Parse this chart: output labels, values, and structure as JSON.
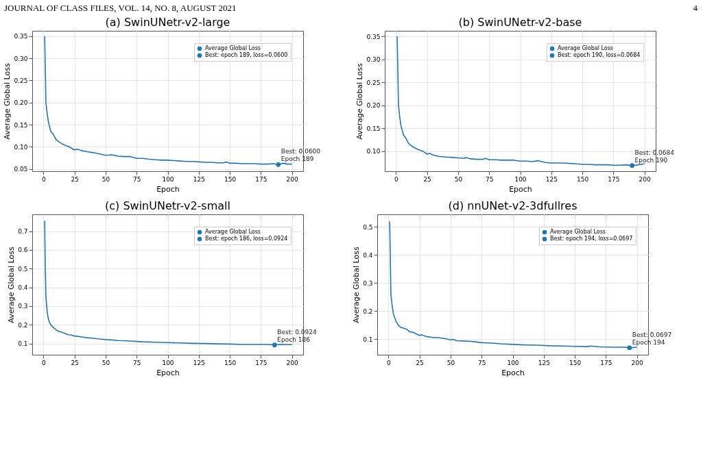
{
  "chart_data": [
    {
      "type": "line",
      "title": "(a) SwinUNetr-v2-large",
      "xlabel": "Epoch",
      "ylabel": "Average Global Loss",
      "xlim": [
        -9,
        209
      ],
      "ylim": [
        0.045,
        0.362
      ],
      "xticks": [
        0,
        25,
        50,
        75,
        100,
        125,
        150,
        175,
        200
      ],
      "yticks": [
        0.05,
        {
          "value": 0.1,
          "label": "0.10"
        },
        0.15,
        {
          "value": 0.2,
          "label": "0.20"
        },
        0.25,
        {
          "value": 0.3,
          "label": "0.30"
        },
        0.35
      ],
      "grid": true,
      "legend": "top right",
      "series": [
        {
          "name": "Average Global Loss",
          "color": "#1f77b4",
          "marker": "none",
          "x": [
            1,
            2,
            3,
            4,
            5,
            6,
            8,
            10,
            12,
            15,
            18,
            20,
            22,
            25,
            27,
            30,
            35,
            40,
            45,
            50,
            55,
            60,
            65,
            70,
            75,
            80,
            85,
            90,
            95,
            100,
            105,
            110,
            115,
            120,
            125,
            130,
            135,
            140,
            145,
            147,
            150,
            155,
            160,
            165,
            170,
            175,
            180,
            185,
            189,
            193,
            196,
            200
          ],
          "values": [
            0.35,
            0.2,
            0.175,
            0.157,
            0.145,
            0.135,
            0.128,
            0.117,
            0.112,
            0.107,
            0.103,
            0.101,
            0.098,
            0.093,
            0.095,
            0.092,
            0.089,
            0.087,
            0.084,
            0.081,
            0.082,
            0.079,
            0.078,
            0.078,
            0.074,
            0.074,
            0.072,
            0.071,
            0.07,
            0.07,
            0.069,
            0.068,
            0.067,
            0.067,
            0.066,
            0.065,
            0.065,
            0.064,
            0.064,
            0.066,
            0.063,
            0.063,
            0.062,
            0.062,
            0.062,
            0.061,
            0.061,
            0.062,
            0.06,
            0.063,
            0.061,
            0.061
          ]
        },
        {
          "name": "Best: epoch 189, loss=0.0600",
          "type": "scatter",
          "marker": "circle",
          "color": "#1f77b4",
          "x": [
            189
          ],
          "values": [
            0.06
          ]
        }
      ],
      "annotations": [
        "JOURNAL OF CLASS FILES, VOL. 14, NO. 8, AUGUST 2021",
        "4",
        {
          "text": "Best: 0.0600\nEpoch 189",
          "x": 189,
          "y": 0.06
        }
      ]
    },
    {
      "type": "line",
      "title": "(b) SwinUNetr-v2-base",
      "xlabel": "Epoch",
      "ylabel": "Average Global Loss",
      "xlim": [
        -9,
        209
      ],
      "ylim": [
        0.056,
        0.362
      ],
      "xticks": [
        0,
        25,
        50,
        75,
        100,
        125,
        150,
        175,
        200
      ],
      "yticks": [
        {
          "value": 0.1,
          "label": "0.10"
        },
        0.15,
        {
          "value": 0.2,
          "label": "0.20"
        },
        0.25,
        {
          "value": 0.3,
          "label": "0.30"
        },
        0.35
      ],
      "grid": true,
      "legend": "top right",
      "series": [
        {
          "name": "Average Global Loss",
          "color": "#1f77b4",
          "marker": "none",
          "x": [
            1,
            2,
            3,
            4,
            5,
            6,
            8,
            10,
            12,
            15,
            18,
            20,
            22,
            25,
            27,
            30,
            35,
            40,
            45,
            50,
            55,
            56,
            60,
            65,
            70,
            72,
            75,
            80,
            85,
            90,
            95,
            100,
            105,
            110,
            114,
            120,
            125,
            130,
            135,
            140,
            145,
            150,
            155,
            160,
            165,
            170,
            175,
            180,
            185,
            190,
            195,
            200
          ],
          "values": [
            0.35,
            0.2,
            0.175,
            0.155,
            0.145,
            0.135,
            0.128,
            0.117,
            0.112,
            0.107,
            0.103,
            0.101,
            0.099,
            0.093,
            0.095,
            0.091,
            0.088,
            0.087,
            0.086,
            0.085,
            0.084,
            0.086,
            0.083,
            0.082,
            0.082,
            0.084,
            0.081,
            0.081,
            0.08,
            0.08,
            0.08,
            0.078,
            0.078,
            0.077,
            0.079,
            0.075,
            0.074,
            0.074,
            0.074,
            0.073,
            0.072,
            0.071,
            0.071,
            0.07,
            0.07,
            0.07,
            0.069,
            0.069,
            0.07,
            0.0684,
            0.07,
            0.072
          ]
        },
        {
          "name": "Best: epoch 190, loss=0.0684",
          "type": "scatter",
          "marker": "circle",
          "color": "#1f77b4",
          "x": [
            190
          ],
          "values": [
            0.0684
          ]
        }
      ],
      "annotations": [
        {
          "text": "Best: 0.0684\nEpoch 190",
          "x": 190,
          "y": 0.0684
        }
      ]
    },
    {
      "type": "line",
      "title": "(c) SwinUNetr-v2-small",
      "xlabel": "Epoch",
      "ylabel": "Average Global Loss",
      "xlim": [
        -9,
        209
      ],
      "ylim": [
        0.04,
        0.79
      ],
      "xticks": [
        0,
        25,
        50,
        75,
        100,
        125,
        150,
        175,
        200
      ],
      "yticks": [
        0.1,
        0.2,
        0.3,
        0.4,
        0.5,
        0.6,
        0.7
      ],
      "grid": true,
      "legend": "top right",
      "series": [
        {
          "name": "Average Global Loss",
          "color": "#1f77b4",
          "marker": "none",
          "x": [
            1,
            1.5,
            2,
            3,
            4,
            5,
            6,
            8,
            10,
            12,
            15,
            18,
            20,
            22,
            25,
            30,
            35,
            40,
            45,
            50,
            55,
            60,
            65,
            70,
            75,
            80,
            85,
            90,
            95,
            100,
            110,
            120,
            130,
            140,
            150,
            160,
            170,
            180,
            186,
            190,
            195,
            200
          ],
          "values": [
            0.755,
            0.5,
            0.35,
            0.27,
            0.23,
            0.21,
            0.2,
            0.185,
            0.175,
            0.165,
            0.16,
            0.152,
            0.147,
            0.146,
            0.14,
            0.136,
            0.131,
            0.128,
            0.124,
            0.121,
            0.119,
            0.116,
            0.115,
            0.113,
            0.111,
            0.109,
            0.108,
            0.107,
            0.106,
            0.105,
            0.103,
            0.101,
            0.1,
            0.098,
            0.097,
            0.095,
            0.095,
            0.095,
            0.0924,
            0.095,
            0.094,
            0.094
          ]
        },
        {
          "name": "Best: epoch 186, loss=0.0924",
          "type": "scatter",
          "marker": "circle",
          "color": "#1f77b4",
          "x": [
            186
          ],
          "values": [
            0.0924
          ]
        }
      ],
      "annotations": [
        {
          "text": "Best: 0.0924\nEpoch 186",
          "x": 186,
          "y": 0.0924
        }
      ]
    },
    {
      "type": "line",
      "title": "(d) nnUNet-v2-3dfullres",
      "xlabel": "Epoch",
      "ylabel": "Average Global Loss",
      "xlim": [
        -9,
        209
      ],
      "ylim": [
        0.045,
        0.545
      ],
      "xticks": [
        0,
        25,
        50,
        75,
        100,
        125,
        150,
        175,
        200
      ],
      "yticks": [
        0.1,
        0.2,
        0.3,
        0.4,
        0.5
      ],
      "grid": true,
      "legend": "top right",
      "series": [
        {
          "name": "Average Global Loss",
          "color": "#1f77b4",
          "marker": "none",
          "x": [
            1,
            1.5,
            2,
            3,
            4,
            5,
            6,
            8,
            10,
            12,
            15,
            17,
            20,
            22,
            25,
            27,
            30,
            35,
            40,
            45,
            50,
            52,
            55,
            60,
            65,
            70,
            75,
            80,
            85,
            90,
            95,
            100,
            110,
            120,
            130,
            140,
            150,
            160,
            163,
            170,
            180,
            190,
            194,
            200
          ],
          "values": [
            0.52,
            0.4,
            0.26,
            0.22,
            0.19,
            0.178,
            0.165,
            0.15,
            0.142,
            0.14,
            0.135,
            0.127,
            0.125,
            0.12,
            0.114,
            0.116,
            0.11,
            0.107,
            0.106,
            0.103,
            0.098,
            0.1,
            0.095,
            0.094,
            0.093,
            0.091,
            0.088,
            0.087,
            0.086,
            0.084,
            0.083,
            0.082,
            0.08,
            0.079,
            0.077,
            0.076,
            0.075,
            0.074,
            0.076,
            0.073,
            0.072,
            0.072,
            0.0697,
            0.072
          ]
        },
        {
          "name": "Best: epoch 194, loss=0.0697",
          "type": "scatter",
          "marker": "circle",
          "color": "#1f77b4",
          "x": [
            194
          ],
          "values": [
            0.0697
          ]
        }
      ],
      "annotations": [
        {
          "text": "Best: 0.0697\nEpoch 194",
          "x": 194,
          "y": 0.0697
        }
      ]
    }
  ]
}
